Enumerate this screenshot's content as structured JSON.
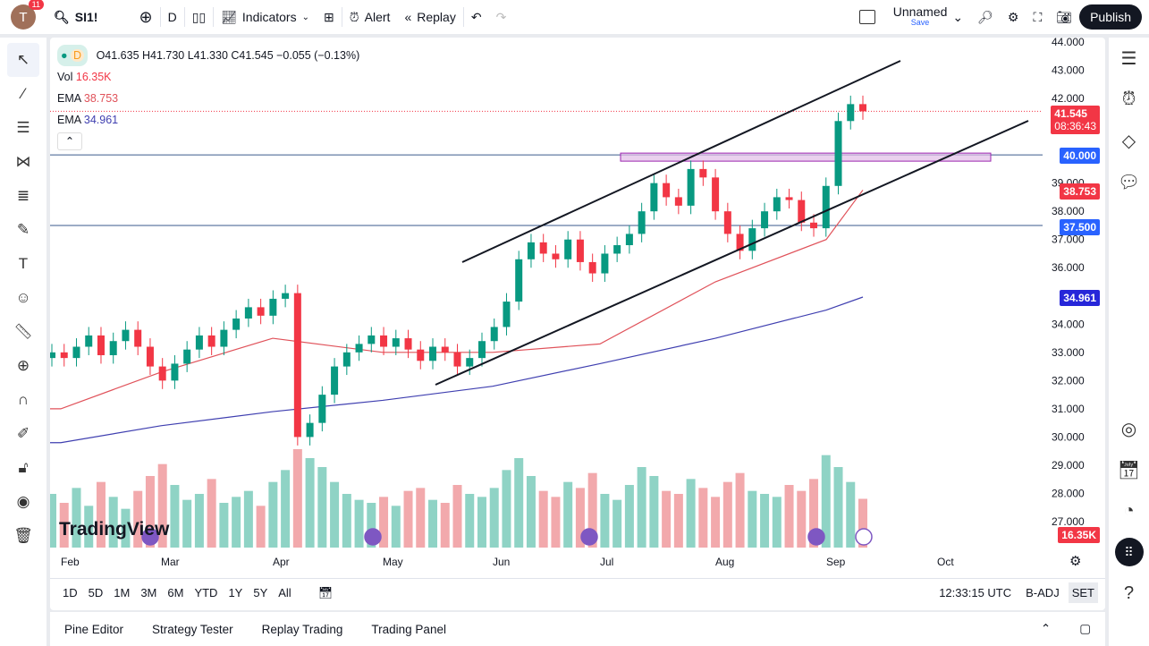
{
  "header": {
    "user_initial": "T",
    "notifications": "11",
    "symbol": "SI1!",
    "interval": "D",
    "indicators": "Indicators",
    "alert": "Alert",
    "replay": "Replay",
    "layout_name": "Unnamed",
    "layout_save": "Save",
    "publish": "Publish"
  },
  "legend": {
    "ohlc": "O41.635 H41.730 L41.330 C41.545 −0.055 (−0.13%)",
    "interval_badge": "D",
    "vol_label": "Vol",
    "vol_value": "16.35K",
    "ema1_label": "EMA",
    "ema1_value": "38.753",
    "ema2_label": "EMA",
    "ema2_value": "34.961"
  },
  "price_axis": {
    "ticks": [
      "44.000",
      "43.000",
      "42.000",
      "39.000",
      "38.000",
      "37.000",
      "36.000",
      "34.000",
      "33.000",
      "32.000",
      "31.000",
      "30.000",
      "29.000",
      "28.000",
      "27.000"
    ],
    "labels": {
      "last": "41.545",
      "countdown": "08:36:43",
      "level1": "40.000",
      "ema1": "38.753",
      "level2": "37.500",
      "ema2": "34.961",
      "vol": "16.35K"
    }
  },
  "time_axis": [
    "Feb",
    "Mar",
    "Apr",
    "May",
    "Jun",
    "Jul",
    "Aug",
    "Sep",
    "Oct"
  ],
  "colors": {
    "up": "#089981",
    "down": "#f23645",
    "ema1": "#e0525a",
    "ema2": "#3f3fb0",
    "level_line": "#2962ff",
    "zone": "#e1bee7"
  },
  "chart_data": {
    "type": "candlestick",
    "closes": [
      33.0,
      32.8,
      33.2,
      33.6,
      32.9,
      33.4,
      33.8,
      33.2,
      32.5,
      32.0,
      32.6,
      33.1,
      33.6,
      33.2,
      33.8,
      34.2,
      34.6,
      34.3,
      34.9,
      35.1,
      30.0,
      30.5,
      31.5,
      32.5,
      33.0,
      33.3,
      33.6,
      33.2,
      33.5,
      33.1,
      32.7,
      33.2,
      33.0,
      32.5,
      32.8,
      33.4,
      33.9,
      34.8,
      36.3,
      36.9,
      36.5,
      36.3,
      37.0,
      36.2,
      35.8,
      36.5,
      36.8,
      37.2,
      38.0,
      39.0,
      38.5,
      38.2,
      39.5,
      39.2,
      38.0,
      37.2,
      36.6,
      37.4,
      38.0,
      38.5,
      38.4,
      37.6,
      37.4,
      38.9,
      41.2,
      41.8,
      41.545
    ],
    "volumes_k": [
      18,
      15,
      20,
      14,
      22,
      17,
      13,
      19,
      24,
      28,
      21,
      16,
      18,
      23,
      15,
      17,
      19,
      14,
      22,
      26,
      33,
      30,
      27,
      22,
      18,
      16,
      15,
      17,
      14,
      19,
      20,
      16,
      15,
      21,
      18,
      17,
      20,
      26,
      30,
      24,
      19,
      17,
      22,
      20,
      25,
      18,
      16,
      21,
      27,
      24,
      19,
      18,
      23,
      20,
      17,
      22,
      25,
      19,
      18,
      17,
      21,
      19,
      23,
      31,
      27,
      22,
      16.35
    ],
    "ema1": [
      31.0,
      32.3,
      33.5,
      33.0,
      33.0,
      33.3,
      35.5,
      37.0,
      38.753
    ],
    "ema2": [
      29.8,
      30.4,
      30.9,
      31.3,
      31.8,
      32.6,
      33.5,
      34.5,
      34.961
    ],
    "horizontal_levels": [
      40.0,
      37.5
    ],
    "ylim": [
      27,
      44
    ]
  },
  "timeframes": [
    "1D",
    "5D",
    "1M",
    "3M",
    "6M",
    "YTD",
    "1Y",
    "5Y",
    "All"
  ],
  "status": {
    "time": "12:33:15 UTC",
    "adj": "B-ADJ",
    "session": "SET"
  },
  "watermark": "TradingView",
  "bottom_tabs": [
    "Pine Editor",
    "Strategy Tester",
    "Replay Trading",
    "Trading Panel"
  ]
}
